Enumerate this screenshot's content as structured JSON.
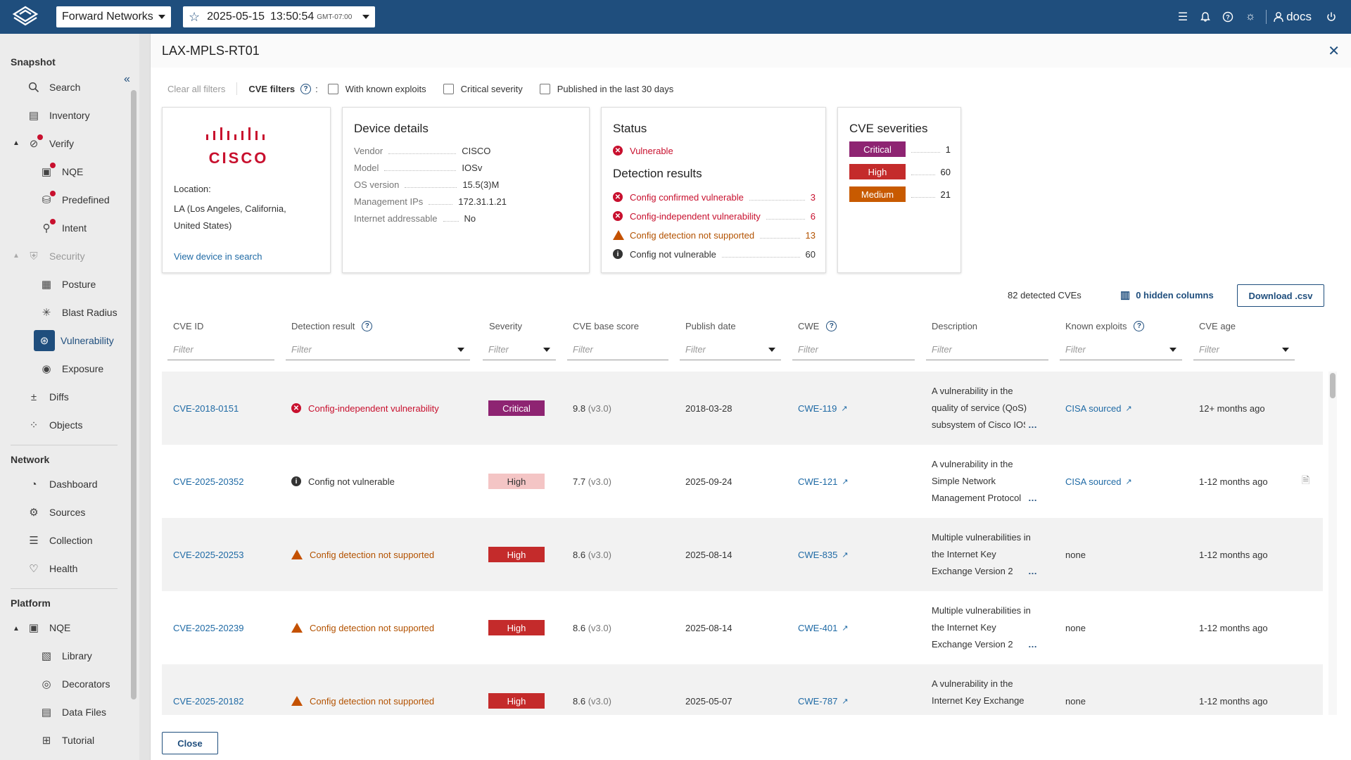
{
  "header": {
    "org": "Forward Networks",
    "snapshot_date": "2025-05-15",
    "snapshot_time": "13:50:54",
    "snapshot_tz": "GMT-07:00",
    "user": "docs"
  },
  "sidebar": {
    "sections": {
      "snapshot": "Snapshot",
      "network": "Network",
      "platform": "Platform"
    },
    "items": {
      "search": "Search",
      "inventory": "Inventory",
      "verify": "Verify",
      "nqe": "NQE",
      "predefined": "Predefined",
      "intent": "Intent",
      "security": "Security",
      "posture": "Posture",
      "blast_radius": "Blast Radius",
      "vulnerability": "Vulnerability",
      "exposure": "Exposure",
      "diffs": "Diffs",
      "objects": "Objects",
      "dashboard": "Dashboard",
      "sources": "Sources",
      "collection": "Collection",
      "health": "Health",
      "platform_nqe": "NQE",
      "library": "Library",
      "decorators": "Decorators",
      "data_files": "Data Files",
      "tutorial": "Tutorial"
    }
  },
  "panel": {
    "title": "LAX-MPLS-RT01",
    "clear_filters": "Clear all filters",
    "cve_filters": "CVE filters",
    "colon": ":",
    "filter_known_exploits": "With known exploits",
    "filter_critical": "Critical severity",
    "filter_recent": "Published in the last 30 days"
  },
  "location_card": {
    "logo_text": "CISCO",
    "label": "Location:",
    "value": "LA (Los Angeles, California, United States)",
    "link": "View device in search"
  },
  "device_card": {
    "title": "Device details",
    "rows": [
      {
        "k": "Vendor",
        "v": "CISCO"
      },
      {
        "k": "Model",
        "v": "IOSv"
      },
      {
        "k": "OS version",
        "v": "15.5(3)M"
      },
      {
        "k": "Management IPs",
        "v": "172.31.1.21"
      },
      {
        "k": "Internet addressable",
        "v": "No"
      }
    ]
  },
  "status_card": {
    "title": "Status",
    "status": "Vulnerable",
    "detection_title": "Detection results",
    "results": [
      {
        "label": "Config confirmed vulnerable",
        "count": "3"
      },
      {
        "label": "Config-independent vulnerability",
        "count": "6"
      },
      {
        "label": "Config detection not supported",
        "count": "13"
      },
      {
        "label": "Config not vulnerable",
        "count": "60"
      }
    ]
  },
  "severity_card": {
    "title": "CVE severities",
    "rows": [
      {
        "label": "Critical",
        "count": "1"
      },
      {
        "label": "High",
        "count": "60"
      },
      {
        "label": "Medium",
        "count": "21"
      }
    ]
  },
  "toolbar": {
    "detected": "82 detected CVEs",
    "hidden_columns": "0 hidden columns",
    "download": "Download .csv"
  },
  "table": {
    "columns": [
      "CVE ID",
      "Detection result",
      "Severity",
      "CVE base score",
      "Publish date",
      "CWE",
      "Description",
      "Known exploits",
      "CVE age"
    ],
    "filter_placeholder": "Filter",
    "rows": [
      {
        "id": "CVE-2018-0151",
        "det": "Config-independent vulnerability",
        "sev": "Critical",
        "score": "9.8",
        "ver": "(v3.0)",
        "date": "2018-03-28",
        "cwe": "CWE-119",
        "desc": "A vulnerability in the quality of service (QoS) subsystem of Cisco IOS",
        "exploit": "CISA sourced",
        "age": "12+ months ago"
      },
      {
        "id": "CVE-2025-20352",
        "det": "Config not vulnerable",
        "sev": "High",
        "score": "7.7",
        "ver": "(v3.0)",
        "date": "2025-09-24",
        "cwe": "CWE-121",
        "desc": "A vulnerability in the Simple Network Management Protocol",
        "exploit": "CISA sourced",
        "age": "1-12 months ago"
      },
      {
        "id": "CVE-2025-20253",
        "det": "Config detection not supported",
        "sev": "High",
        "score": "8.6",
        "ver": "(v3.0)",
        "date": "2025-08-14",
        "cwe": "CWE-835",
        "desc": "Multiple vulnerabilities in the Internet Key Exchange Version 2",
        "exploit": "none",
        "age": "1-12 months ago"
      },
      {
        "id": "CVE-2025-20239",
        "det": "Config detection not supported",
        "sev": "High",
        "score": "8.6",
        "ver": "(v3.0)",
        "date": "2025-08-14",
        "cwe": "CWE-401",
        "desc": "Multiple vulnerabilities in the Internet Key Exchange Version 2",
        "exploit": "none",
        "age": "1-12 months ago"
      },
      {
        "id": "CVE-2025-20182",
        "det": "Config detection not supported",
        "sev": "High",
        "score": "8.6",
        "ver": "(v3.0)",
        "date": "2025-05-07",
        "cwe": "CWE-787",
        "desc": "A vulnerability in the Internet Key Exchange",
        "exploit": "none",
        "age": "1-12 months ago"
      }
    ]
  },
  "footer": {
    "close": "Close"
  },
  "colors": {
    "brand": "#1f4e7d",
    "critical": "#8e2472",
    "high": "#c42b2b",
    "medium": "#c85a00",
    "error": "#c8102e"
  }
}
